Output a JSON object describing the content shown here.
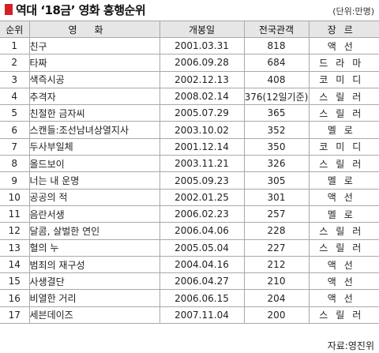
{
  "title": "역대 ‘18금’ 영화 흥행순위",
  "unit": "(단위:만명)",
  "columns": {
    "rank": "순위",
    "movie": "영화",
    "release": "개봉일",
    "audience": "전국관객",
    "genre": "장르"
  },
  "rows": [
    {
      "rank": "1",
      "movie": "친구",
      "release": "2001.03.31",
      "audience": "818",
      "genre": "액선"
    },
    {
      "rank": "2",
      "movie": "타짜",
      "release": "2006.09.28",
      "audience": "684",
      "genre": "드라마"
    },
    {
      "rank": "3",
      "movie": "색즉시공",
      "release": "2002.12.13",
      "audience": "408",
      "genre": "코미디"
    },
    {
      "rank": "4",
      "movie": "추격자",
      "release": "2008.02.14",
      "audience": "376(12일기준)",
      "genre": "스릴러"
    },
    {
      "rank": "5",
      "movie": "친절한 금자씨",
      "release": "2005.07.29",
      "audience": "365",
      "genre": "스릴러"
    },
    {
      "rank": "6",
      "movie": "스캔들:조선남녀상열지사",
      "release": "2003.10.02",
      "audience": "352",
      "genre": "멜로"
    },
    {
      "rank": "7",
      "movie": "두사부일체",
      "release": "2001.12.14",
      "audience": "350",
      "genre": "코미디"
    },
    {
      "rank": "8",
      "movie": "올드보이",
      "release": "2003.11.21",
      "audience": "326",
      "genre": "스릴러"
    },
    {
      "rank": "9",
      "movie": "너는 내 운명",
      "release": "2005.09.23",
      "audience": "305",
      "genre": "멜로"
    },
    {
      "rank": "10",
      "movie": "공공의 적",
      "release": "2002.01.25",
      "audience": "301",
      "genre": "액선"
    },
    {
      "rank": "11",
      "movie": "음란서생",
      "release": "2006.02.23",
      "audience": "257",
      "genre": "멜로"
    },
    {
      "rank": "12",
      "movie": "달콤, 살벌한 연인",
      "release": "2006.04.06",
      "audience": "228",
      "genre": "스릴러"
    },
    {
      "rank": "13",
      "movie": "혈의 누",
      "release": "2005.05.04",
      "audience": "227",
      "genre": "스릴러"
    },
    {
      "rank": "14",
      "movie": "범죄의 재구성",
      "release": "2004.04.16",
      "audience": "212",
      "genre": "액선"
    },
    {
      "rank": "15",
      "movie": "사생결단",
      "release": "2006.04.27",
      "audience": "210",
      "genre": "액선"
    },
    {
      "rank": "16",
      "movie": "비열한 거리",
      "release": "2006.06.15",
      "audience": "204",
      "genre": "액선"
    },
    {
      "rank": "17",
      "movie": "세븐데이즈",
      "release": "2007.11.04",
      "audience": "200",
      "genre": "스릴러"
    }
  ],
  "source": "자료:영진위",
  "colors": {
    "title_mark": "#d51f26",
    "header_bg": "#e6e6e6",
    "border": "#a9a9a9"
  }
}
